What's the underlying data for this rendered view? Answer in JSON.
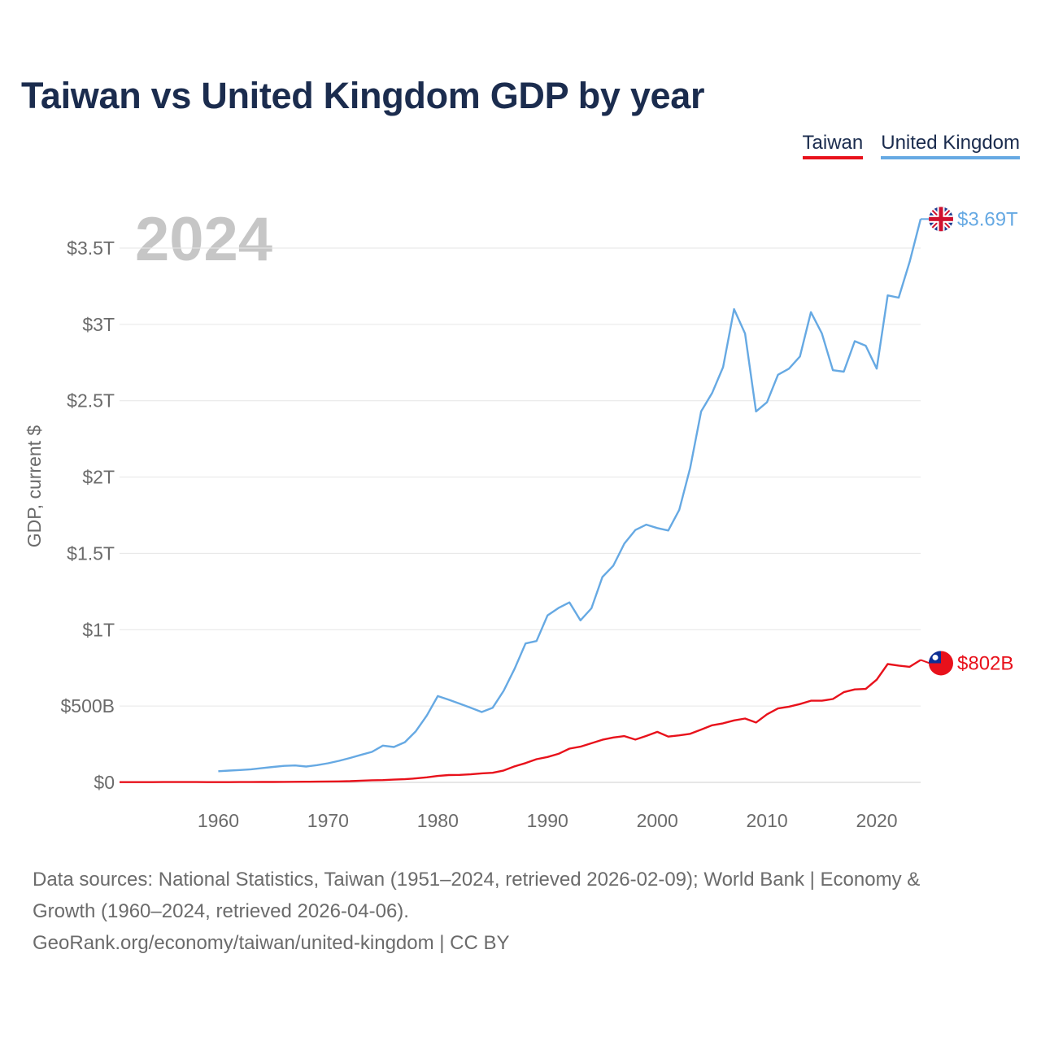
{
  "title": "Taiwan vs United Kingdom GDP by year",
  "legend": [
    {
      "label": "Taiwan",
      "color": "#e8111b"
    },
    {
      "label": "United Kingdom",
      "color": "#66a9e3"
    }
  ],
  "source": {
    "line1": "Data sources: National Statistics, Taiwan (1951–2024, retrieved 2026-02-09); World Bank | Economy &",
    "line2": "Growth (1960–2024, retrieved 2026-04-06).",
    "line3": "GeoRank.org/economy/taiwan/united-kingdom | CC BY"
  },
  "chart_data": {
    "type": "line",
    "title": "Taiwan vs United Kingdom GDP by year",
    "xlabel": "",
    "ylabel": "GDP, current $",
    "year_label": "2024",
    "xlim": [
      1951,
      2024
    ],
    "ylim": [
      0,
      3800
    ],
    "y_unit": "billions of current US$",
    "y_ticks": [
      0,
      500,
      1000,
      1500,
      2000,
      2500,
      3000,
      3500
    ],
    "y_tick_labels": [
      "$0",
      "$500B",
      "$1T",
      "$1.5T",
      "$2T",
      "$2.5T",
      "$3T",
      "$3.5T"
    ],
    "x_ticks": [
      1960,
      1970,
      1980,
      1990,
      2000,
      2010,
      2020
    ],
    "x_tick_labels": [
      "1960",
      "1970",
      "1980",
      "1990",
      "2000",
      "2010",
      "2020"
    ],
    "grid": true,
    "series": [
      {
        "name": "Taiwan",
        "color": "#e8111b",
        "end_label": "$802B",
        "flag": "taiwan-flag",
        "x": [
          1951,
          1952,
          1953,
          1954,
          1955,
          1956,
          1957,
          1958,
          1959,
          1960,
          1961,
          1962,
          1963,
          1964,
          1965,
          1966,
          1967,
          1968,
          1969,
          1970,
          1971,
          1972,
          1973,
          1974,
          1975,
          1976,
          1977,
          1978,
          1979,
          1980,
          1981,
          1982,
          1983,
          1984,
          1985,
          1986,
          1987,
          1988,
          1989,
          1990,
          1991,
          1992,
          1993,
          1994,
          1995,
          1996,
          1997,
          1998,
          1999,
          2000,
          2001,
          2002,
          2003,
          2004,
          2005,
          2006,
          2007,
          2008,
          2009,
          2010,
          2011,
          2012,
          2013,
          2014,
          2015,
          2016,
          2017,
          2018,
          2019,
          2020,
          2021,
          2022,
          2023,
          2024
        ],
        "values": [
          1.7,
          1.7,
          1.6,
          1.7,
          1.9,
          1.9,
          2.0,
          2.0,
          1.7,
          1.7,
          1.8,
          1.9,
          2.2,
          2.5,
          2.8,
          3.1,
          3.6,
          4.1,
          4.8,
          5.7,
          6.6,
          7.9,
          11,
          14,
          15,
          18,
          21,
          26,
          33,
          42,
          48,
          49,
          53,
          59,
          63,
          78,
          105,
          126,
          152,
          166,
          187,
          221,
          234,
          256,
          279,
          294,
          303,
          280,
          304,
          331,
          300,
          308,
          318,
          346,
          374,
          387,
          406,
          418,
          392,
          446,
          484,
          496,
          513,
          535,
          535,
          546,
          591,
          609,
          612,
          673,
          775,
          765,
          757,
          802
        ]
      },
      {
        "name": "United Kingdom",
        "color": "#66a9e3",
        "end_label": "$3.69T",
        "flag": "united-kingdom-flag",
        "x": [
          1960,
          1961,
          1962,
          1963,
          1964,
          1965,
          1966,
          1967,
          1968,
          1969,
          1970,
          1971,
          1972,
          1973,
          1974,
          1975,
          1976,
          1977,
          1978,
          1979,
          1980,
          1981,
          1982,
          1983,
          1984,
          1985,
          1986,
          1987,
          1988,
          1989,
          1990,
          1991,
          1992,
          1993,
          1994,
          1995,
          1996,
          1997,
          1998,
          1999,
          2000,
          2001,
          2002,
          2003,
          2004,
          2005,
          2006,
          2007,
          2008,
          2009,
          2010,
          2011,
          2012,
          2013,
          2014,
          2015,
          2016,
          2017,
          2018,
          2019,
          2020,
          2021,
          2022,
          2023,
          2024
        ],
        "values": [
          73,
          77,
          81,
          86,
          94,
          101,
          108,
          111,
          104,
          113,
          125,
          141,
          160,
          180,
          200,
          241,
          232,
          263,
          335,
          438,
          565,
          541,
          515,
          489,
          461,
          489,
          600,
          745,
          910,
          926,
          1093,
          1142,
          1179,
          1061,
          1140,
          1345,
          1420,
          1564,
          1653,
          1688,
          1666,
          1650,
          1785,
          2059,
          2430,
          2550,
          2720,
          3100,
          2940,
          2430,
          2490,
          2670,
          2710,
          2790,
          3080,
          2940,
          2700,
          2690,
          2890,
          2860,
          2710,
          3190,
          3175,
          3410,
          3690
        ]
      }
    ]
  }
}
